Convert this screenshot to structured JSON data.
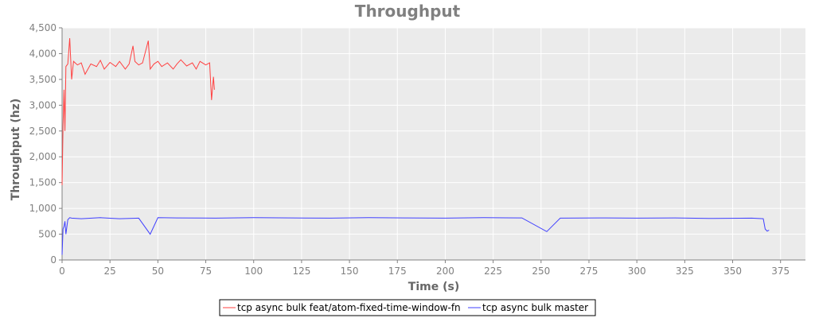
{
  "chart_data": {
    "type": "line",
    "title": "Throughput",
    "xlabel": "Time (s)",
    "ylabel": "Throughput (hz)",
    "xlim": [
      0,
      388
    ],
    "ylim": [
      0,
      4500
    ],
    "x_ticks": [
      0,
      25,
      50,
      75,
      100,
      125,
      150,
      175,
      200,
      225,
      250,
      275,
      300,
      325,
      350,
      375
    ],
    "x_tick_labels": [
      "0",
      "25",
      "50",
      "75",
      "100",
      "125",
      "150",
      "175",
      "200",
      "225",
      "250",
      "275",
      "300",
      "325",
      "350",
      "375"
    ],
    "y_ticks": [
      0,
      500,
      1000,
      1500,
      2000,
      2500,
      3000,
      3500,
      4000,
      4500
    ],
    "y_tick_labels": [
      "0",
      "500",
      "1,000",
      "1,500",
      "2,000",
      "2,500",
      "3,000",
      "3,500",
      "4,000",
      "4,500"
    ],
    "grid": true,
    "legend_position": "bottom",
    "background": "#ebebeb",
    "series": [
      {
        "name": "tcp async bulk feat/atom-fixed-time-window-fn",
        "color": "#ff4040",
        "x": [
          0,
          0.5,
          1,
          1.5,
          2,
          3,
          4,
          5,
          6,
          8,
          10,
          12,
          15,
          18,
          20,
          22,
          25,
          28,
          30,
          33,
          35,
          37,
          38,
          40,
          42,
          45,
          46,
          48,
          50,
          52,
          55,
          58,
          60,
          62,
          65,
          68,
          70,
          72,
          75,
          77,
          78,
          79,
          79.5
        ],
        "y": [
          1450,
          2600,
          3300,
          2500,
          3750,
          3800,
          4300,
          3500,
          3850,
          3780,
          3820,
          3600,
          3800,
          3750,
          3870,
          3700,
          3830,
          3750,
          3850,
          3700,
          3800,
          4150,
          3850,
          3780,
          3820,
          4250,
          3700,
          3800,
          3850,
          3750,
          3820,
          3700,
          3800,
          3880,
          3760,
          3820,
          3700,
          3850,
          3780,
          3820,
          3100,
          3550,
          3300
        ]
      },
      {
        "name": "tcp async bulk master",
        "color": "#4040ff",
        "x": [
          0,
          0.5,
          1,
          1.5,
          2,
          3,
          4,
          5,
          10,
          20,
          30,
          40,
          46,
          50,
          60,
          80,
          100,
          120,
          140,
          160,
          180,
          200,
          220,
          240,
          253,
          260,
          280,
          300,
          320,
          340,
          360,
          366,
          367,
          368,
          369
        ],
        "y": [
          100,
          600,
          650,
          750,
          500,
          780,
          820,
          810,
          800,
          820,
          800,
          810,
          500,
          820,
          815,
          810,
          820,
          815,
          810,
          820,
          815,
          810,
          820,
          815,
          550,
          810,
          815,
          810,
          815,
          805,
          810,
          800,
          600,
          560,
          580
        ]
      }
    ]
  }
}
